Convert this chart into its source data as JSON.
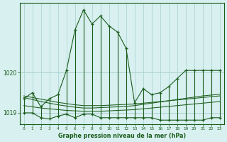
{
  "xlabel": "Graphe pression niveau de la mer (hPa)",
  "hours": [
    0,
    1,
    2,
    3,
    4,
    5,
    6,
    7,
    8,
    9,
    10,
    11,
    12,
    13,
    14,
    15,
    16,
    17,
    18,
    19,
    20,
    21,
    22,
    23
  ],
  "series_max": [
    1019.35,
    1019.5,
    1019.15,
    1019.35,
    1019.45,
    1020.05,
    1021.05,
    1021.55,
    1021.2,
    1021.4,
    1021.15,
    1021.0,
    1020.6,
    1019.25,
    1019.6,
    1019.45,
    1019.5,
    1019.65,
    1019.85,
    1020.05,
    1020.05,
    1020.05,
    1020.05,
    1020.05
  ],
  "series_min": [
    1019.0,
    1019.0,
    1018.88,
    1018.85,
    1018.92,
    1018.97,
    1018.88,
    1018.97,
    1018.97,
    1018.88,
    1018.88,
    1018.88,
    1018.88,
    1018.88,
    1018.88,
    1018.88,
    1018.82,
    1018.82,
    1018.82,
    1018.82,
    1018.82,
    1018.82,
    1018.88,
    1018.88
  ],
  "trend1_y": [
    1019.42,
    1019.38,
    1019.34,
    1019.3,
    1019.26,
    1019.23,
    1019.2,
    1019.18,
    1019.18,
    1019.18,
    1019.19,
    1019.2,
    1019.21,
    1019.22,
    1019.24,
    1019.26,
    1019.28,
    1019.3,
    1019.32,
    1019.34,
    1019.36,
    1019.38,
    1019.4,
    1019.42
  ],
  "trend2_y": [
    1019.18,
    1019.15,
    1019.12,
    1019.1,
    1019.08,
    1019.06,
    1019.05,
    1019.04,
    1019.04,
    1019.04,
    1019.05,
    1019.06,
    1019.07,
    1019.08,
    1019.1,
    1019.12,
    1019.14,
    1019.16,
    1019.18,
    1019.2,
    1019.22,
    1019.24,
    1019.26,
    1019.28
  ],
  "trend3_y": [
    1019.38,
    1019.33,
    1019.28,
    1019.24,
    1019.2,
    1019.17,
    1019.14,
    1019.12,
    1019.12,
    1019.13,
    1019.14,
    1019.15,
    1019.16,
    1019.18,
    1019.21,
    1019.24,
    1019.27,
    1019.3,
    1019.33,
    1019.36,
    1019.39,
    1019.42,
    1019.44,
    1019.46
  ],
  "line_color": "#1a5c1a",
  "bg_color": "#d8f0f0",
  "grid_color": "#a8cece",
  "ylim_min": 1018.72,
  "ylim_max": 1021.72,
  "ytick_positions": [
    1019.0,
    1020.0
  ],
  "ytick_labels": [
    "1019",
    "1020"
  ]
}
